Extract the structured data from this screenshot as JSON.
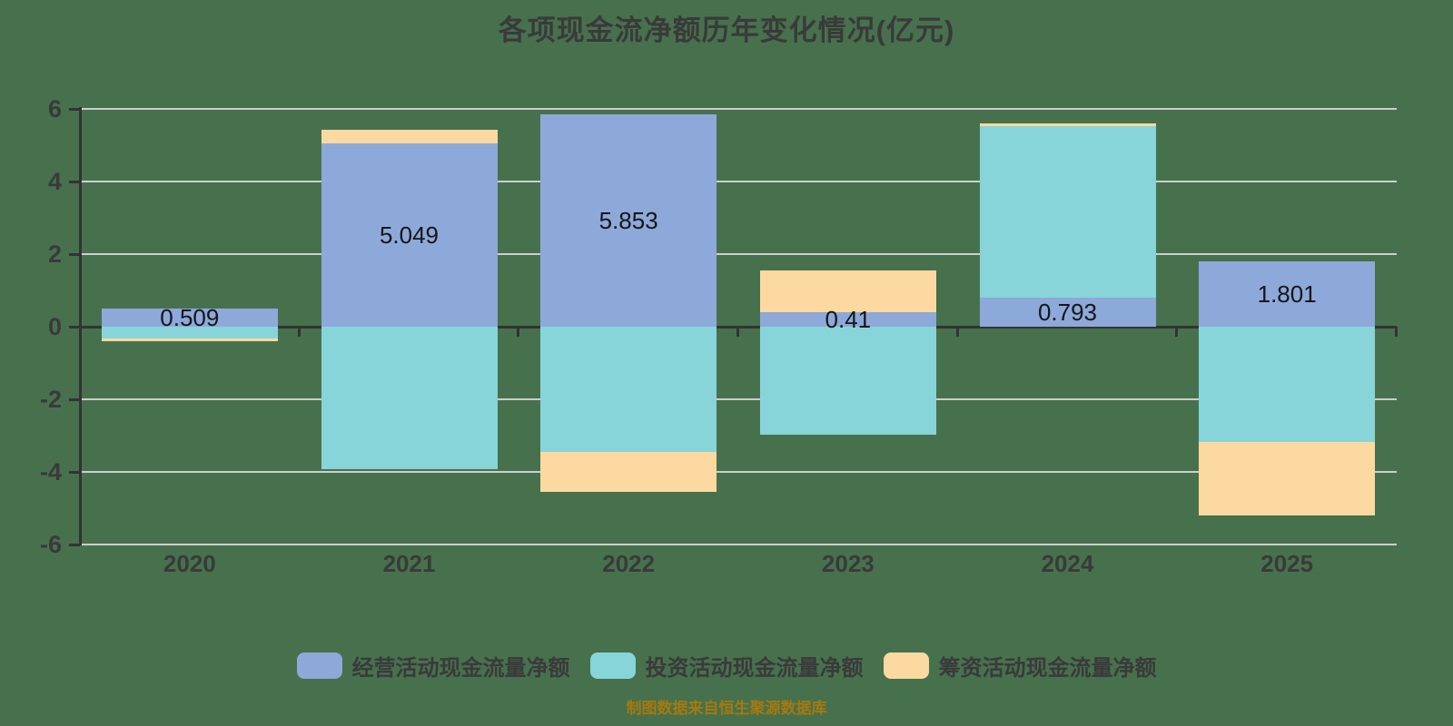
{
  "chart": {
    "title": "各项现金流净额历年变化情况(亿元)",
    "source_note": "制图数据来自恒生聚源数据库"
  },
  "chart_data": {
    "type": "bar",
    "stacked": true,
    "title": "各项现金流净额历年变化情况(亿元)",
    "xlabel": "",
    "ylabel": "",
    "categories": [
      "2020",
      "2021",
      "2022",
      "2023",
      "2024",
      "2025"
    ],
    "series": [
      {
        "name": "经营活动现金流量净额",
        "color": "#8DA9DA",
        "values": [
          0.509,
          5.049,
          5.853,
          0.41,
          0.793,
          1.801
        ]
      },
      {
        "name": "投资活动现金流量净额",
        "color": "#87D5D9",
        "values": [
          -0.33,
          -3.93,
          -3.45,
          -2.98,
          4.73,
          -3.18
        ]
      },
      {
        "name": "筹资活动现金流量净额",
        "color": "#FBD9A0",
        "values": [
          -0.06,
          0.37,
          -1.1,
          1.15,
          0.08,
          -2.03
        ]
      }
    ],
    "value_labels": [
      "0.509",
      "5.049",
      "5.853",
      "0.41",
      "0.793",
      "1.801"
    ],
    "ylim": [
      -6,
      6
    ],
    "yticks": [
      6,
      4,
      2,
      0,
      -2,
      -4,
      -6
    ],
    "grid": true,
    "legend_position": "bottom",
    "colors": {
      "background": "#47714D",
      "text_dark": "#3A3A3A",
      "gridline": "#CCCFCC",
      "axis": "#333333",
      "source_note": "#A5790E"
    }
  }
}
